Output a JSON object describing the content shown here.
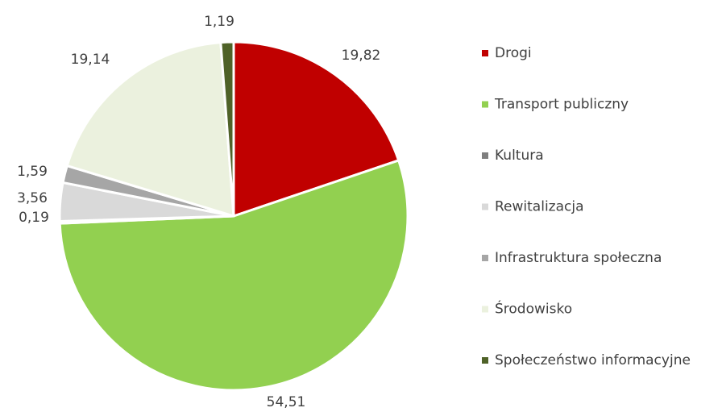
{
  "chart_data": {
    "type": "pie",
    "categories": [
      "Drogi",
      "Transport publiczny",
      "Kultura",
      "Rewitalizacja",
      "Infrastruktura społeczna",
      "Środowisko",
      "Społeczeństwo informacyjne"
    ],
    "values": [
      19.82,
      54.51,
      0.19,
      3.56,
      1.59,
      19.14,
      1.19
    ],
    "value_labels": [
      "19,82",
      "54,51",
      "0,19",
      "3,56",
      "1,59",
      "19,14",
      "1,19"
    ],
    "colors": [
      "#c00000",
      "#92d050",
      "#7f7f7f",
      "#d9d9d9",
      "#a6a6a6",
      "#ebf1de",
      "#4f6228"
    ],
    "legend": "right"
  }
}
